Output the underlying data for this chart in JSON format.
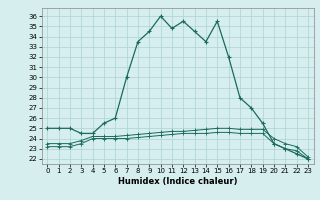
{
  "xlabel": "Humidex (Indice chaleur)",
  "background_color": "#d6eeee",
  "grid_color": "#aad4d4",
  "line_color": "#1a6b5a",
  "x_ticks": [
    0,
    1,
    2,
    3,
    4,
    5,
    6,
    7,
    8,
    9,
    10,
    11,
    12,
    13,
    14,
    15,
    16,
    17,
    18,
    19,
    20,
    21,
    22,
    23
  ],
  "y_ticks": [
    22,
    23,
    24,
    25,
    26,
    27,
    28,
    29,
    30,
    31,
    32,
    33,
    34,
    35,
    36
  ],
  "xlim": [
    -0.5,
    23.5
  ],
  "ylim": [
    21.5,
    36.8
  ],
  "series1_x": [
    0,
    1,
    2,
    3,
    4,
    5,
    6,
    7,
    8,
    9,
    10,
    11,
    12,
    13,
    14,
    15,
    16,
    17,
    18,
    19,
    20,
    21,
    22,
    23
  ],
  "series1_y": [
    25,
    25,
    25,
    24.5,
    24.5,
    25.5,
    26,
    30,
    33.5,
    34.5,
    36,
    34.8,
    35.5,
    34.5,
    33.5,
    35.5,
    32,
    28,
    27,
    25.5,
    23.5,
    23,
    22.5,
    22
  ],
  "series2_x": [
    0,
    1,
    2,
    3,
    4,
    5,
    6,
    7,
    8,
    9,
    10,
    11,
    12,
    13,
    14,
    15,
    16,
    17,
    18,
    19,
    20,
    21,
    22,
    23
  ],
  "series2_y": [
    23.5,
    23.5,
    23.5,
    23.8,
    24.2,
    24.2,
    24.2,
    24.3,
    24.4,
    24.5,
    24.6,
    24.7,
    24.7,
    24.8,
    24.9,
    25.0,
    25.0,
    24.9,
    24.9,
    24.9,
    24.0,
    23.5,
    23.2,
    22.2
  ],
  "series3_x": [
    0,
    1,
    2,
    3,
    4,
    5,
    6,
    7,
    8,
    9,
    10,
    11,
    12,
    13,
    14,
    15,
    16,
    17,
    18,
    19,
    20,
    21,
    22,
    23
  ],
  "series3_y": [
    23.2,
    23.2,
    23.2,
    23.5,
    24.0,
    24.0,
    24.0,
    24.0,
    24.1,
    24.2,
    24.3,
    24.4,
    24.5,
    24.5,
    24.5,
    24.6,
    24.6,
    24.5,
    24.5,
    24.5,
    23.5,
    23.0,
    22.8,
    22.0
  ],
  "tick_fontsize": 5.0,
  "xlabel_fontsize": 6.0
}
